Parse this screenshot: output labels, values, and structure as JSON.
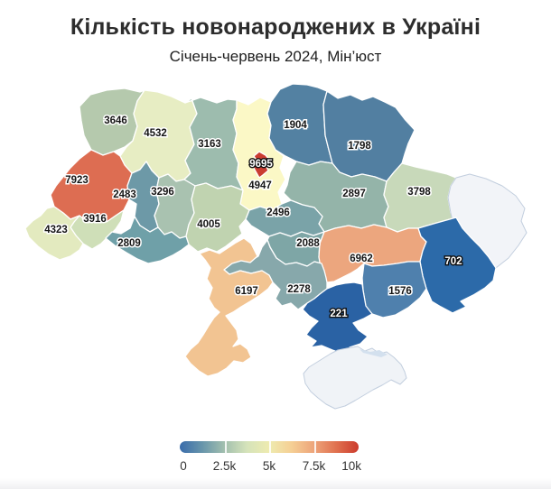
{
  "chart_data": {
    "type": "choropleth",
    "title": "Кількість новонароджених в Україні",
    "subtitle": "Січень-червень 2024, Мін’юст",
    "colorbar": {
      "range": [
        0,
        10000
      ],
      "tick_labels": [
        "0",
        "2.5k",
        "5k",
        "7.5k",
        "10k"
      ],
      "gradient": [
        "#3a6cab",
        "#6795ab",
        "#a2bfae",
        "#d5e3ba",
        "#eeebb0",
        "#f5cf94",
        "#eda47a",
        "#e0714f",
        "#cc3b2d"
      ]
    },
    "no_data_color": "#f2f4f8",
    "regions": [
      {
        "id": "volyn",
        "value": 3646,
        "color": "#b5c9ad",
        "label": "dark"
      },
      {
        "id": "rivne",
        "value": 4532,
        "color": "#e7edc3",
        "label": "dark"
      },
      {
        "id": "zhytomyr",
        "value": 3163,
        "color": "#9dbcae",
        "label": "dark"
      },
      {
        "id": "kyiv_oblast",
        "value": 4947,
        "color": "#fbf8c6",
        "label": "dark"
      },
      {
        "id": "chernihiv",
        "value": 1904,
        "color": "#5381a2",
        "label": "dark"
      },
      {
        "id": "sumy",
        "value": 1798,
        "color": "#527fa1",
        "label": "dark"
      },
      {
        "id": "poltava",
        "value": 2897,
        "color": "#94b4a9",
        "label": "dark"
      },
      {
        "id": "kharkiv",
        "value": 3798,
        "color": "#c8d9ba",
        "label": "dark"
      },
      {
        "id": "luhansk",
        "value": null,
        "color": "#f2f4f8",
        "label": "none"
      },
      {
        "id": "lviv",
        "value": 7923,
        "color": "#dd6d52",
        "label": "dark"
      },
      {
        "id": "ternopil",
        "value": 2483,
        "color": "#6d99a7",
        "label": "dark"
      },
      {
        "id": "khmelnytskyi",
        "value": 3296,
        "color": "#a9c2b0",
        "label": "dark"
      },
      {
        "id": "vinnytsia",
        "value": 4005,
        "color": "#c0d3b0",
        "label": "dark"
      },
      {
        "id": "ivano_frankivsk",
        "value": 3916,
        "color": "#cfdfb8",
        "label": "dark"
      },
      {
        "id": "zakarpattia",
        "value": 4323,
        "color": "#e3eabf",
        "label": "dark"
      },
      {
        "id": "chernivtsi",
        "value": 2809,
        "color": "#6fa0a8",
        "label": "dark"
      },
      {
        "id": "cherkasy",
        "value": 2496,
        "color": "#7aa3a8",
        "label": "dark"
      },
      {
        "id": "kirovohrad",
        "value": 2088,
        "color": "#7ea6a6",
        "label": "dark"
      },
      {
        "id": "dnipropetrovsk",
        "value": 6962,
        "color": "#eca67e",
        "label": "dark"
      },
      {
        "id": "donetsk",
        "value": 702,
        "color": "#2c6aa9",
        "label": "light"
      },
      {
        "id": "zaporizhzhia",
        "value": 1576,
        "color": "#4f80ad",
        "label": "dark"
      },
      {
        "id": "mykolaiv",
        "value": 2278,
        "color": "#87a8ab",
        "label": "dark"
      },
      {
        "id": "kherson",
        "value": 221,
        "color": "#2a62a4",
        "label": "light"
      },
      {
        "id": "odesa",
        "value": 6197,
        "color": "#f2c492",
        "label": "dark"
      },
      {
        "id": "kyiv_city",
        "value": 9695,
        "color": "#ca3c30",
        "label": "light"
      },
      {
        "id": "crimea",
        "value": null,
        "color": "#f0f3f7",
        "label": "none"
      }
    ]
  }
}
